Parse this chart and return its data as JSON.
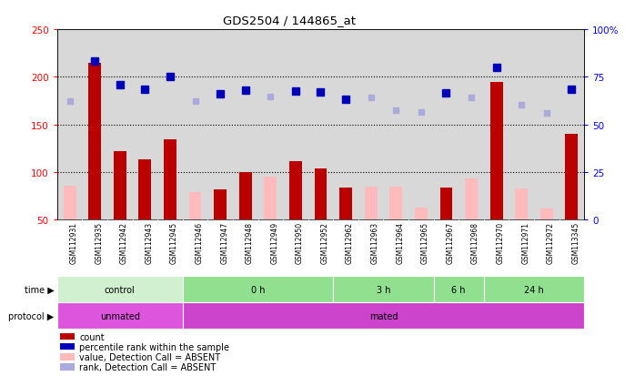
{
  "title": "GDS2504 / 144865_at",
  "samples": [
    "GSM112931",
    "GSM112935",
    "GSM112942",
    "GSM112943",
    "GSM112945",
    "GSM112946",
    "GSM112947",
    "GSM112948",
    "GSM112949",
    "GSM112950",
    "GSM112952",
    "GSM112962",
    "GSM112963",
    "GSM112964",
    "GSM112965",
    "GSM112967",
    "GSM112968",
    "GSM112970",
    "GSM112971",
    "GSM112972",
    "GSM113345"
  ],
  "count_values": [
    null,
    215,
    122,
    113,
    134,
    null,
    82,
    100,
    null,
    111,
    104,
    84,
    null,
    null,
    null,
    84,
    null,
    195,
    null,
    null,
    140
  ],
  "count_absent": [
    86,
    null,
    null,
    null,
    null,
    79,
    null,
    null,
    95,
    null,
    null,
    null,
    85,
    85,
    63,
    null,
    93,
    null,
    83,
    62,
    null
  ],
  "rank_present": [
    null,
    217,
    192,
    187,
    200,
    null,
    182,
    186,
    null,
    185,
    184,
    176,
    null,
    null,
    null,
    183,
    null,
    210,
    null,
    null,
    187
  ],
  "rank_absent": [
    175,
    null,
    null,
    null,
    null,
    175,
    null,
    null,
    179,
    null,
    null,
    null,
    178,
    165,
    163,
    null,
    178,
    null,
    171,
    162,
    null
  ],
  "time_groups": [
    {
      "label": "control",
      "start": 0,
      "end": 5,
      "color": "#d0f0d0"
    },
    {
      "label": "0 h",
      "start": 5,
      "end": 11,
      "color": "#90e090"
    },
    {
      "label": "3 h",
      "start": 11,
      "end": 15,
      "color": "#90e090"
    },
    {
      "label": "6 h",
      "start": 15,
      "end": 17,
      "color": "#90e090"
    },
    {
      "label": "24 h",
      "start": 17,
      "end": 21,
      "color": "#90e090"
    }
  ],
  "protocol_groups": [
    {
      "label": "unmated",
      "start": 0,
      "end": 5,
      "color": "#dd55dd"
    },
    {
      "label": "mated",
      "start": 5,
      "end": 21,
      "color": "#cc44cc"
    }
  ],
  "ylim_left": [
    50,
    250
  ],
  "ylim_right": [
    0,
    100
  ],
  "bar_color": "#bb0000",
  "bar_absent_color": "#ffbbbb",
  "rank_color": "#0000bb",
  "rank_absent_color": "#aaaadd",
  "bg_color": "#d8d8d8",
  "grid_color": "#000000",
  "yticks_left": [
    50,
    100,
    150,
    200,
    250
  ],
  "yticks_right": [
    0,
    25,
    50,
    75,
    100
  ]
}
